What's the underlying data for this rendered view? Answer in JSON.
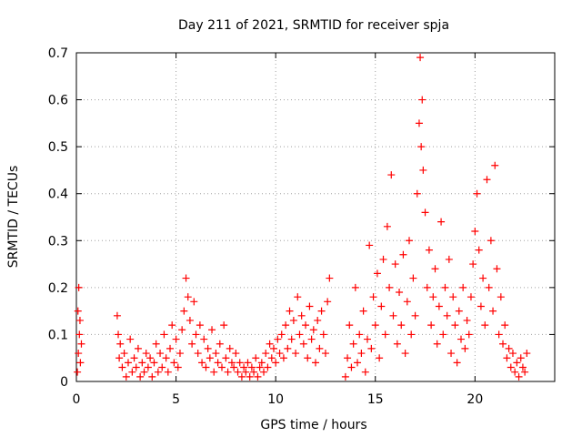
{
  "chart_data": {
    "type": "scatter",
    "title": "Day 211 of 2021, SRMTID for receiver spja",
    "xlabel": "GPS time / hours",
    "ylabel": "SRMTID / TECUs",
    "xlim": [
      0,
      24
    ],
    "ylim": [
      0,
      0.7
    ],
    "xticks": [
      0,
      5,
      10,
      15,
      20
    ],
    "yticks": [
      0,
      0.1,
      0.2,
      0.3,
      0.4,
      0.5,
      0.6,
      0.7
    ],
    "xtick_labels": [
      "0",
      "5",
      "10",
      "15",
      "20"
    ],
    "ytick_labels": [
      "0",
      "0.1",
      "0.2",
      "0.3",
      "0.4",
      "0.5",
      "0.6",
      "0.7"
    ],
    "grid": true,
    "marker": "+",
    "color": "#ff0000",
    "series": [
      {
        "name": "SRMTID",
        "points": [
          [
            0.05,
            0.02
          ],
          [
            0.08,
            0.15
          ],
          [
            0.1,
            0.06
          ],
          [
            0.12,
            0.2
          ],
          [
            0.15,
            0.1
          ],
          [
            0.18,
            0.13
          ],
          [
            0.2,
            0.04
          ],
          [
            0.25,
            0.08
          ],
          [
            2.05,
            0.14
          ],
          [
            2.1,
            0.1
          ],
          [
            2.15,
            0.05
          ],
          [
            2.2,
            0.08
          ],
          [
            2.3,
            0.03
          ],
          [
            2.4,
            0.06
          ],
          [
            2.5,
            0.01
          ],
          [
            2.6,
            0.04
          ],
          [
            2.7,
            0.09
          ],
          [
            2.8,
            0.02
          ],
          [
            2.9,
            0.05
          ],
          [
            3.0,
            0.03
          ],
          [
            3.1,
            0.07
          ],
          [
            3.2,
            0.01
          ],
          [
            3.3,
            0.04
          ],
          [
            3.4,
            0.02
          ],
          [
            3.5,
            0.06
          ],
          [
            3.6,
            0.03
          ],
          [
            3.7,
            0.05
          ],
          [
            3.8,
            0.01
          ],
          [
            3.9,
            0.04
          ],
          [
            4.0,
            0.08
          ],
          [
            4.1,
            0.02
          ],
          [
            4.2,
            0.06
          ],
          [
            4.3,
            0.03
          ],
          [
            4.4,
            0.1
          ],
          [
            4.5,
            0.05
          ],
          [
            4.6,
            0.02
          ],
          [
            4.7,
            0.07
          ],
          [
            4.8,
            0.12
          ],
          [
            4.9,
            0.04
          ],
          [
            5.0,
            0.09
          ],
          [
            5.1,
            0.03
          ],
          [
            5.2,
            0.06
          ],
          [
            5.3,
            0.11
          ],
          [
            5.4,
            0.15
          ],
          [
            5.5,
            0.22
          ],
          [
            5.6,
            0.18
          ],
          [
            5.7,
            0.13
          ],
          [
            5.8,
            0.08
          ],
          [
            5.9,
            0.17
          ],
          [
            6.0,
            0.1
          ],
          [
            6.1,
            0.06
          ],
          [
            6.2,
            0.12
          ],
          [
            6.3,
            0.04
          ],
          [
            6.4,
            0.09
          ],
          [
            6.5,
            0.03
          ],
          [
            6.6,
            0.07
          ],
          [
            6.7,
            0.05
          ],
          [
            6.8,
            0.11
          ],
          [
            6.9,
            0.02
          ],
          [
            7.0,
            0.06
          ],
          [
            7.1,
            0.04
          ],
          [
            7.2,
            0.08
          ],
          [
            7.3,
            0.03
          ],
          [
            7.4,
            0.12
          ],
          [
            7.5,
            0.05
          ],
          [
            7.6,
            0.02
          ],
          [
            7.7,
            0.07
          ],
          [
            7.8,
            0.04
          ],
          [
            7.9,
            0.03
          ],
          [
            8.0,
            0.06
          ],
          [
            8.1,
            0.02
          ],
          [
            8.2,
            0.04
          ],
          [
            8.3,
            0.01
          ],
          [
            8.4,
            0.03
          ],
          [
            8.5,
            0.02
          ],
          [
            8.6,
            0.04
          ],
          [
            8.7,
            0.01
          ],
          [
            8.8,
            0.03
          ],
          [
            8.9,
            0.02
          ],
          [
            9.0,
            0.05
          ],
          [
            9.1,
            0.01
          ],
          [
            9.2,
            0.03
          ],
          [
            9.3,
            0.04
          ],
          [
            9.4,
            0.02
          ],
          [
            9.5,
            0.06
          ],
          [
            9.6,
            0.03
          ],
          [
            9.7,
            0.08
          ],
          [
            9.8,
            0.05
          ],
          [
            9.9,
            0.07
          ],
          [
            10.0,
            0.04
          ],
          [
            10.1,
            0.09
          ],
          [
            10.2,
            0.06
          ],
          [
            10.3,
            0.1
          ],
          [
            10.4,
            0.05
          ],
          [
            10.5,
            0.12
          ],
          [
            10.6,
            0.07
          ],
          [
            10.7,
            0.15
          ],
          [
            10.8,
            0.09
          ],
          [
            10.9,
            0.13
          ],
          [
            11.0,
            0.06
          ],
          [
            11.1,
            0.18
          ],
          [
            11.2,
            0.1
          ],
          [
            11.3,
            0.14
          ],
          [
            11.4,
            0.08
          ],
          [
            11.5,
            0.12
          ],
          [
            11.6,
            0.05
          ],
          [
            11.7,
            0.16
          ],
          [
            11.8,
            0.09
          ],
          [
            11.9,
            0.11
          ],
          [
            12.0,
            0.04
          ],
          [
            12.1,
            0.13
          ],
          [
            12.2,
            0.07
          ],
          [
            12.3,
            0.15
          ],
          [
            12.4,
            0.1
          ],
          [
            12.5,
            0.06
          ],
          [
            12.6,
            0.17
          ],
          [
            12.7,
            0.22
          ],
          [
            13.5,
            0.01
          ],
          [
            13.6,
            0.05
          ],
          [
            13.7,
            0.12
          ],
          [
            13.8,
            0.03
          ],
          [
            13.9,
            0.08
          ],
          [
            14.0,
            0.2
          ],
          [
            14.1,
            0.04
          ],
          [
            14.2,
            0.1
          ],
          [
            14.3,
            0.06
          ],
          [
            14.4,
            0.15
          ],
          [
            14.5,
            0.02
          ],
          [
            14.6,
            0.09
          ],
          [
            14.7,
            0.29
          ],
          [
            14.8,
            0.07
          ],
          [
            14.9,
            0.18
          ],
          [
            15.0,
            0.12
          ],
          [
            15.1,
            0.23
          ],
          [
            15.2,
            0.05
          ],
          [
            15.3,
            0.16
          ],
          [
            15.4,
            0.26
          ],
          [
            15.5,
            0.1
          ],
          [
            15.6,
            0.33
          ],
          [
            15.7,
            0.2
          ],
          [
            15.8,
            0.44
          ],
          [
            15.9,
            0.14
          ],
          [
            16.0,
            0.25
          ],
          [
            16.1,
            0.08
          ],
          [
            16.2,
            0.19
          ],
          [
            16.3,
            0.12
          ],
          [
            16.4,
            0.27
          ],
          [
            16.5,
            0.06
          ],
          [
            16.6,
            0.17
          ],
          [
            16.7,
            0.3
          ],
          [
            16.8,
            0.1
          ],
          [
            16.9,
            0.22
          ],
          [
            17.0,
            0.14
          ],
          [
            17.1,
            0.4
          ],
          [
            17.2,
            0.55
          ],
          [
            17.25,
            0.69
          ],
          [
            17.3,
            0.5
          ],
          [
            17.35,
            0.6
          ],
          [
            17.4,
            0.45
          ],
          [
            17.5,
            0.36
          ],
          [
            17.6,
            0.2
          ],
          [
            17.7,
            0.28
          ],
          [
            17.8,
            0.12
          ],
          [
            17.9,
            0.18
          ],
          [
            18.0,
            0.24
          ],
          [
            18.1,
            0.08
          ],
          [
            18.2,
            0.16
          ],
          [
            18.3,
            0.34
          ],
          [
            18.4,
            0.1
          ],
          [
            18.5,
            0.2
          ],
          [
            18.6,
            0.14
          ],
          [
            18.7,
            0.26
          ],
          [
            18.8,
            0.06
          ],
          [
            18.9,
            0.18
          ],
          [
            19.0,
            0.12
          ],
          [
            19.1,
            0.04
          ],
          [
            19.2,
            0.15
          ],
          [
            19.3,
            0.09
          ],
          [
            19.4,
            0.2
          ],
          [
            19.5,
            0.07
          ],
          [
            19.6,
            0.13
          ],
          [
            19.7,
            0.1
          ],
          [
            19.8,
            0.18
          ],
          [
            19.9,
            0.25
          ],
          [
            20.0,
            0.32
          ],
          [
            20.1,
            0.4
          ],
          [
            20.2,
            0.28
          ],
          [
            20.3,
            0.16
          ],
          [
            20.4,
            0.22
          ],
          [
            20.5,
            0.12
          ],
          [
            20.6,
            0.43
          ],
          [
            20.7,
            0.2
          ],
          [
            20.8,
            0.3
          ],
          [
            20.9,
            0.15
          ],
          [
            21.0,
            0.46
          ],
          [
            21.1,
            0.24
          ],
          [
            21.2,
            0.1
          ],
          [
            21.3,
            0.18
          ],
          [
            21.4,
            0.08
          ],
          [
            21.5,
            0.12
          ],
          [
            21.6,
            0.05
          ],
          [
            21.7,
            0.07
          ],
          [
            21.8,
            0.03
          ],
          [
            21.9,
            0.06
          ],
          [
            22.0,
            0.02
          ],
          [
            22.1,
            0.04
          ],
          [
            22.2,
            0.01
          ],
          [
            22.3,
            0.05
          ],
          [
            22.4,
            0.03
          ],
          [
            22.5,
            0.02
          ],
          [
            22.6,
            0.06
          ]
        ]
      }
    ]
  }
}
